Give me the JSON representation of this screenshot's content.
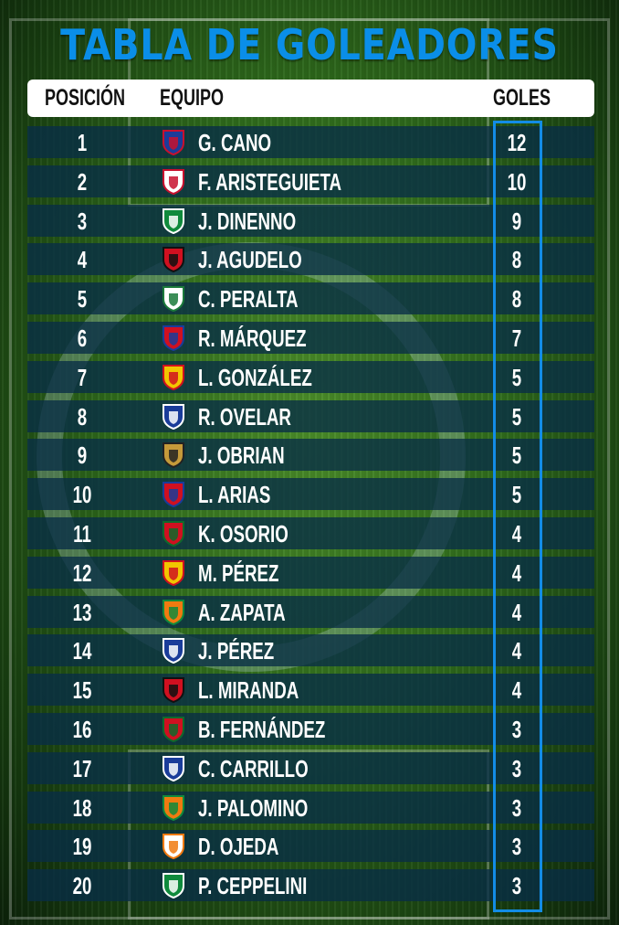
{
  "title": "TABLA DE GOLEADORES",
  "headers": {
    "position": "POSICIÓN",
    "team": "EQUIPO",
    "goals": "GOLES"
  },
  "accent_color": "#0a8ee8",
  "rows": [
    {
      "pos": "1",
      "name": "G. CANO",
      "goals": "12",
      "crest": "medellin-crest",
      "colors": [
        "#1b3c9a",
        "#c8102e"
      ]
    },
    {
      "pos": "2",
      "name": "F. ARISTEGUIETA",
      "goals": "10",
      "crest": "america-crest",
      "colors": [
        "#ffffff",
        "#c8102e"
      ]
    },
    {
      "pos": "3",
      "name": "J. DINENNO",
      "goals": "9",
      "crest": "deportivo-cali-crest",
      "colors": [
        "#0f8a3c",
        "#ffffff"
      ]
    },
    {
      "pos": "4",
      "name": "J. AGUDELO",
      "goals": "8",
      "crest": "cucuta-crest",
      "colors": [
        "#d01020",
        "#111111"
      ]
    },
    {
      "pos": "5",
      "name": "C. PERALTA",
      "goals": "8",
      "crest": "equidad-crest",
      "colors": [
        "#ffffff",
        "#1a7a3a"
      ]
    },
    {
      "pos": "6",
      "name": "R. MÁRQUEZ",
      "goals": "7",
      "crest": "union-magdalena-crest",
      "colors": [
        "#d01020",
        "#1a3c9a"
      ]
    },
    {
      "pos": "7",
      "name": "L. GONZÁLEZ",
      "goals": "5",
      "crest": "pereira-crest",
      "colors": [
        "#f2c500",
        "#d01020"
      ]
    },
    {
      "pos": "8",
      "name": "R. OVELAR",
      "goals": "5",
      "crest": "millonarios-crest",
      "colors": [
        "#1a3c9a",
        "#ffffff"
      ]
    },
    {
      "pos": "9",
      "name": "J. OBRIAN",
      "goals": "5",
      "crest": "rionegro-crest",
      "colors": [
        "#c59a3a",
        "#222222"
      ]
    },
    {
      "pos": "10",
      "name": "L. ARIAS",
      "goals": "5",
      "crest": "union-magdalena-crest",
      "colors": [
        "#d01020",
        "#1a3c9a"
      ]
    },
    {
      "pos": "11",
      "name": "K. OSORIO",
      "goals": "4",
      "crest": "patriotas-crest",
      "colors": [
        "#d01020",
        "#0f6a2c"
      ]
    },
    {
      "pos": "12",
      "name": "M. PÉREZ",
      "goals": "4",
      "crest": "pereira-crest",
      "colors": [
        "#f2c500",
        "#d01020"
      ]
    },
    {
      "pos": "13",
      "name": "A. ZAPATA",
      "goals": "4",
      "crest": "envigado-crest",
      "colors": [
        "#f07a10",
        "#0f8a3c"
      ]
    },
    {
      "pos": "14",
      "name": "J. PÉREZ",
      "goals": "4",
      "crest": "millonarios-crest",
      "colors": [
        "#1a3c9a",
        "#ffffff"
      ]
    },
    {
      "pos": "15",
      "name": "L. MIRANDA",
      "goals": "4",
      "crest": "cucuta-crest",
      "colors": [
        "#d01020",
        "#111111"
      ]
    },
    {
      "pos": "16",
      "name": "B. FERNÁNDEZ",
      "goals": "3",
      "crest": "patriotas-crest",
      "colors": [
        "#d01020",
        "#0f6a2c"
      ]
    },
    {
      "pos": "17",
      "name": "C. CARRILLO",
      "goals": "3",
      "crest": "millonarios-crest",
      "colors": [
        "#1a3c9a",
        "#ffffff"
      ]
    },
    {
      "pos": "18",
      "name": "J. PALOMINO",
      "goals": "3",
      "crest": "envigado-crest",
      "colors": [
        "#f07a10",
        "#0f8a3c"
      ]
    },
    {
      "pos": "19",
      "name": "D. OJEDA",
      "goals": "3",
      "crest": "envigado-crest",
      "colors": [
        "#ffffff",
        "#f07a10"
      ]
    },
    {
      "pos": "20",
      "name": "P. CEPPELINI",
      "goals": "3",
      "crest": "nacional-crest",
      "colors": [
        "#0f8a3c",
        "#ffffff"
      ]
    }
  ]
}
